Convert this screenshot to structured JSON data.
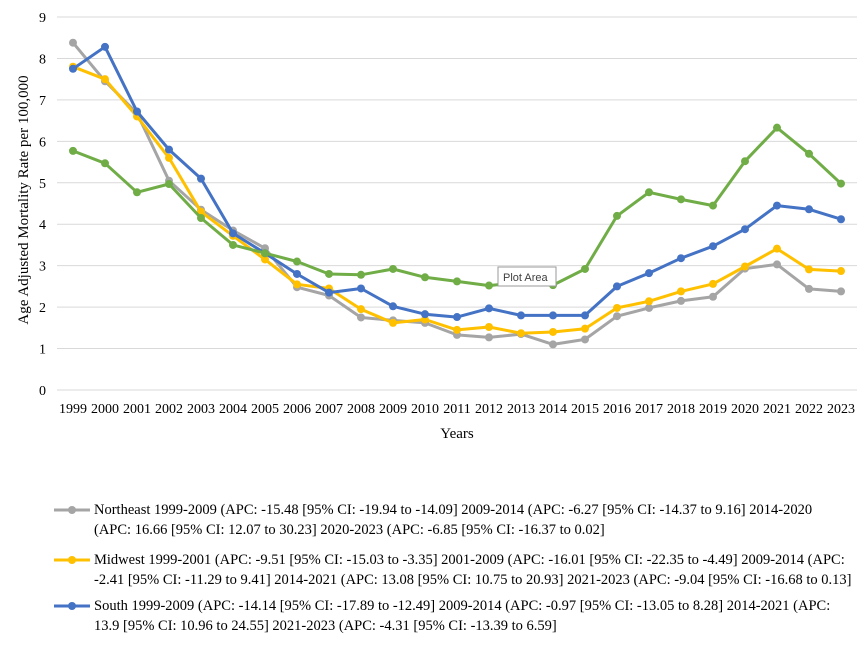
{
  "chart_data": {
    "type": "line",
    "xlabel": "Years",
    "ylabel": "Age Adjusted Mortality Rate per 100,000",
    "ylim": [
      0,
      9
    ],
    "yticks": [
      "0",
      "1",
      "2",
      "3",
      "4",
      "5",
      "6",
      "7",
      "8",
      "9"
    ],
    "grid": "horizontal",
    "legend_position": "bottom",
    "categories": [
      "1999",
      "2000",
      "2001",
      "2002",
      "2003",
      "2004",
      "2005",
      "2006",
      "2007",
      "2008",
      "2009",
      "2010",
      "2011",
      "2012",
      "2013",
      "2014",
      "2015",
      "2016",
      "2017",
      "2018",
      "2019",
      "2020",
      "2021",
      "2022",
      "2023"
    ],
    "series": [
      {
        "name": "Northeast 1999-2009 (APC: -15.48 [95% CI: -19.94 to -14.09] 2009-2014 (APC: -6.27 [95% CI: -14.37 to 9.16] 2014-2020 (APC: 16.66 [95% CI: 12.07 to 30.23] 2020-2023 (APC: -6.85 [95% CI: -16.37 to 0.02]",
        "color": "#a5a5a5",
        "values": [
          8.38,
          7.45,
          6.68,
          5.05,
          4.35,
          3.85,
          3.42,
          2.48,
          2.28,
          1.75,
          1.68,
          1.62,
          1.33,
          1.27,
          1.35,
          1.1,
          1.22,
          1.78,
          1.98,
          2.15,
          2.25,
          2.93,
          3.03,
          2.44,
          2.38
        ]
      },
      {
        "name": "Midwest 1999-2001 (APC: -9.51 [95% CI: -15.03 to -3.35] 2001-2009 (APC: -16.01 [95% CI: -22.35 to -4.49] 2009-2014 (APC: -2.41 [95% CI: -11.29 to 9.41] 2014-2021 (APC: 13.08 [95% CI: 10.75 to 20.93] 2021-2023 (APC: -9.04 [95% CI: -16.68 to 0.13]",
        "color": "#ffc000",
        "values": [
          7.8,
          7.5,
          6.6,
          5.6,
          4.3,
          3.72,
          3.15,
          2.55,
          2.45,
          1.95,
          1.62,
          1.7,
          1.45,
          1.52,
          1.37,
          1.4,
          1.48,
          1.98,
          2.14,
          2.38,
          2.56,
          2.98,
          3.41,
          2.91,
          2.87
        ]
      },
      {
        "name": "South 1999-2009 (APC: -14.14 [95% CI: -17.89 to -12.49] 2009-2014 (APC: -0.97 [95% CI: -13.05 to 8.28] 2014-2021 (APC: 13.9 [95% CI: 10.96 to 24.55] 2021-2023 (APC: -4.31 [95% CI: -13.39 to 6.59]",
        "color": "#4472c4",
        "values": [
          7.75,
          8.28,
          6.72,
          5.8,
          5.1,
          3.78,
          3.3,
          2.8,
          2.35,
          2.45,
          2.02,
          1.83,
          1.76,
          1.97,
          1.8,
          1.8,
          1.8,
          2.5,
          2.82,
          3.18,
          3.47,
          3.88,
          4.45,
          4.36,
          4.12
        ]
      },
      {
        "color": "#70ad47",
        "values": [
          5.77,
          5.47,
          4.77,
          4.97,
          4.15,
          3.5,
          3.3,
          3.1,
          2.8,
          2.78,
          2.92,
          2.72,
          2.62,
          2.52,
          2.6,
          2.53,
          2.92,
          4.2,
          4.77,
          4.6,
          4.45,
          5.52,
          6.33,
          5.7,
          4.98
        ]
      }
    ]
  },
  "tooltip": {
    "label": "Plot Area"
  }
}
